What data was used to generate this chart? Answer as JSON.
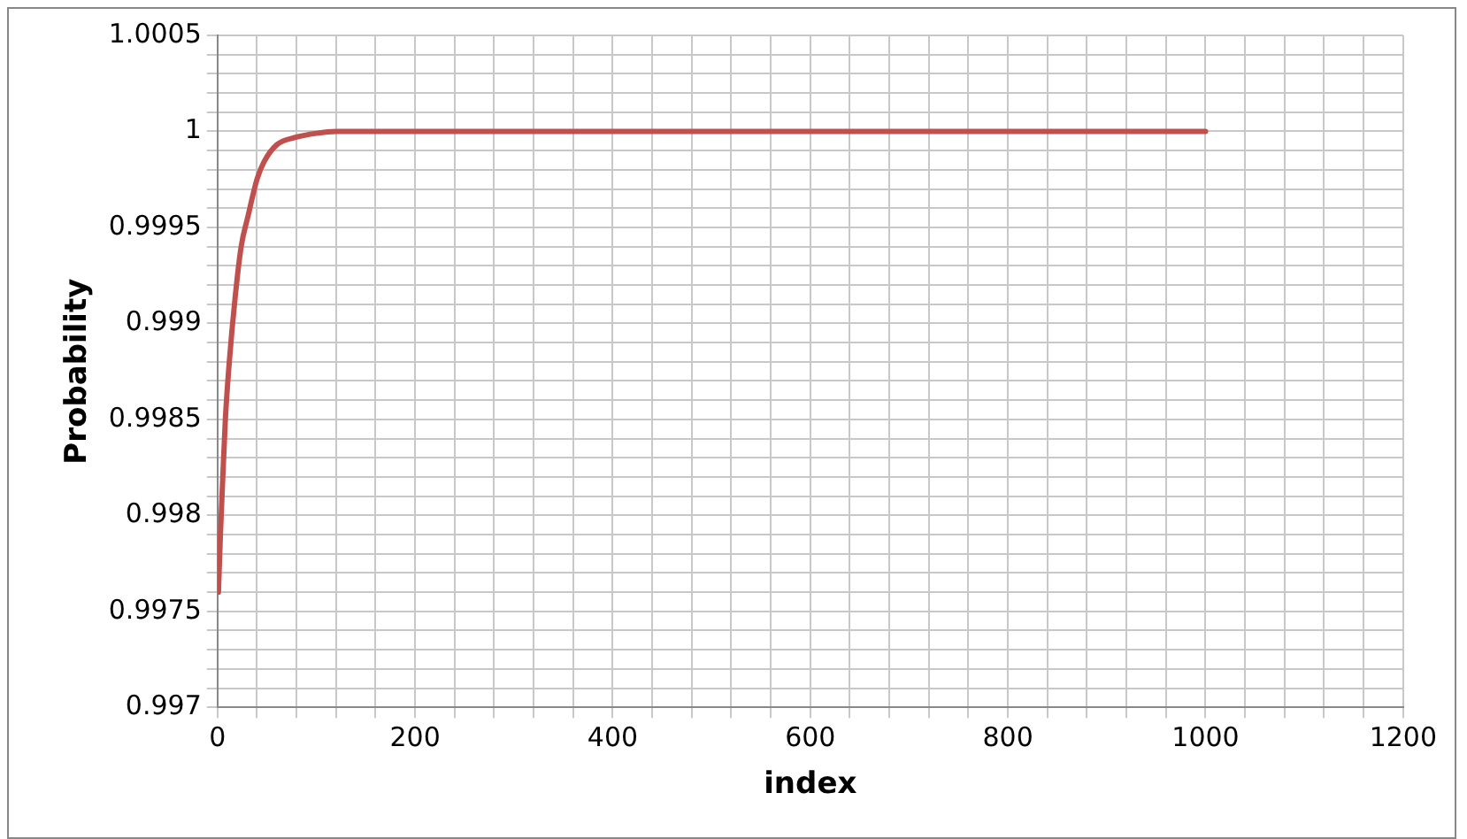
{
  "chart_data": {
    "type": "line",
    "xlabel": "index",
    "ylabel": "Probability",
    "x": [
      1,
      3,
      5,
      8,
      12,
      18,
      24,
      31,
      40,
      47,
      60,
      80,
      100,
      120,
      1000
    ],
    "series": [
      {
        "color": "#c0504d",
        "values": [
          0.9976,
          0.9979,
          0.99815,
          0.9985,
          0.9988,
          0.99914,
          0.9994,
          0.99956,
          0.99975,
          0.99984,
          0.99993,
          0.99997,
          0.99999,
          1,
          1
        ]
      }
    ],
    "xlim": [
      0,
      1200
    ],
    "xticks": [
      0,
      {
        "value": 40,
        "label": null
      },
      {
        "value": 80,
        "label": null
      },
      {
        "value": 120,
        "label": null
      },
      {
        "value": 160,
        "label": null
      },
      200,
      {
        "value": 240,
        "label": null
      },
      {
        "value": 280,
        "label": null
      },
      {
        "value": 320,
        "label": null
      },
      {
        "value": 360,
        "label": null
      },
      400,
      {
        "value": 440,
        "label": null
      },
      {
        "value": 480,
        "label": null
      },
      {
        "value": 520,
        "label": null
      },
      {
        "value": 560,
        "label": null
      },
      600,
      {
        "value": 640,
        "label": null
      },
      {
        "value": 680,
        "label": null
      },
      {
        "value": 720,
        "label": null
      },
      {
        "value": 760,
        "label": null
      },
      800,
      {
        "value": 840,
        "label": null
      },
      {
        "value": 880,
        "label": null
      },
      {
        "value": 920,
        "label": null
      },
      {
        "value": 960,
        "label": null
      },
      1000,
      {
        "value": 1040,
        "label": null
      },
      {
        "value": 1080,
        "label": null
      },
      {
        "value": 1120,
        "label": null
      },
      {
        "value": 1160,
        "label": null
      },
      1200
    ],
    "ylim": [
      0.997,
      1.0005
    ],
    "yticks": [
      0.997,
      {
        "value": 0.9971,
        "label": null
      },
      {
        "value": 0.9972,
        "label": null
      },
      {
        "value": 0.9973,
        "label": null
      },
      {
        "value": 0.9974,
        "label": null
      },
      0.9975,
      {
        "value": 0.9976,
        "label": null
      },
      {
        "value": 0.9977,
        "label": null
      },
      {
        "value": 0.9978,
        "label": null
      },
      {
        "value": 0.9979,
        "label": null
      },
      0.998,
      {
        "value": 0.9981,
        "label": null
      },
      {
        "value": 0.9982,
        "label": null
      },
      {
        "value": 0.9983,
        "label": null
      },
      {
        "value": 0.9984,
        "label": null
      },
      0.9985,
      {
        "value": 0.9986,
        "label": null
      },
      {
        "value": 0.9987,
        "label": null
      },
      {
        "value": 0.9988,
        "label": null
      },
      {
        "value": 0.9989,
        "label": null
      },
      0.999,
      {
        "value": 0.9991,
        "label": null
      },
      {
        "value": 0.9992,
        "label": null
      },
      {
        "value": 0.9993,
        "label": null
      },
      {
        "value": 0.9994,
        "label": null
      },
      0.9995,
      {
        "value": 0.9996,
        "label": null
      },
      {
        "value": 0.9997,
        "label": null
      },
      {
        "value": 0.9998,
        "label": null
      },
      {
        "value": 0.9999,
        "label": null
      },
      1,
      {
        "value": 1.0001,
        "label": null
      },
      {
        "value": 1.0002,
        "label": null
      },
      {
        "value": 1.0003,
        "label": null
      },
      {
        "value": 1.0004,
        "label": null
      },
      1.0005
    ],
    "grid": true,
    "legend": false,
    "marker": "none",
    "line_style": "solid"
  }
}
